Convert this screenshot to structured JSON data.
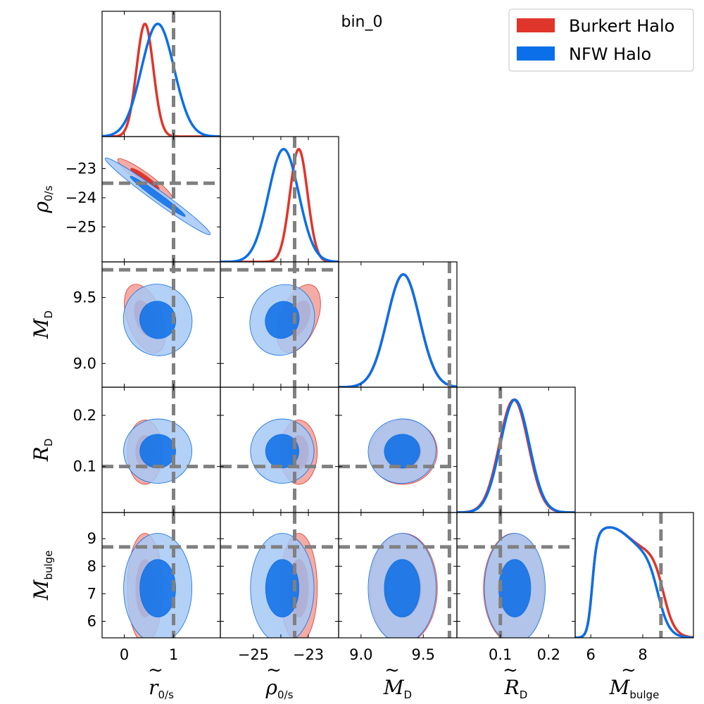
{
  "chart_data": {
    "type": "corner",
    "title": "bin_0",
    "parameters": [
      {
        "key": "r0s",
        "symbol": "r",
        "sub": "0/s",
        "range": [
          -0.45,
          1.95
        ],
        "ticks": [
          0,
          1
        ],
        "tick_labels": [
          "0",
          "1"
        ],
        "truth": 1.0
      },
      {
        "key": "rho0s",
        "symbol": "ρ",
        "sub": "0/s",
        "range": [
          -26.2,
          -21.9
        ],
        "ticks": [
          -25,
          -24,
          -23
        ],
        "tick_labels": [
          "−25",
          "−24",
          "−23"
        ],
        "x_tick_labels": [
          "−25",
          "",
          "−23"
        ],
        "truth": -23.5
      },
      {
        "key": "MD",
        "symbol": "M",
        "sub": "D",
        "range": [
          8.82,
          9.77
        ],
        "ticks": [
          9.0,
          9.5
        ],
        "tick_labels": [
          "9.0",
          "9.5"
        ],
        "truth": 9.71
      },
      {
        "key": "RD",
        "symbol": "R",
        "sub": "D",
        "range": [
          0.01,
          0.255
        ],
        "ticks": [
          0.1,
          0.2
        ],
        "tick_labels": [
          "0.1",
          "0.2"
        ],
        "truth": 0.1
      },
      {
        "key": "Mbulge",
        "symbol": "M",
        "sub": "bulge",
        "range": [
          5.4,
          9.95
        ],
        "ticks": [
          6,
          8
        ],
        "tick_labels": [
          "6",
          "8"
        ],
        "y_ticks": [
          6,
          7,
          8,
          9
        ],
        "y_tick_labels": [
          "6",
          "7",
          "8",
          "9"
        ],
        "truth": 8.7
      }
    ],
    "series": [
      {
        "name": "Burkert Halo",
        "color": "#e0352b",
        "light": "#f2a39b",
        "mean": [
          0.42,
          -23.35,
          9.34,
          0.128,
          7.2
        ],
        "std": [
          0.17,
          0.32,
          0.13,
          0.03,
          0.95
        ],
        "marginal_peaks": [
          0.42,
          -23.35,
          9.34,
          0.128,
          7.3
        ]
      },
      {
        "name": "NFW Halo",
        "color": "#0a6fe8",
        "light": "#a6c8f5",
        "mean": [
          0.68,
          -23.95,
          9.33,
          0.13,
          7.2
        ],
        "std": [
          0.33,
          0.55,
          0.13,
          0.03,
          0.95
        ],
        "marginal_peaks": [
          0.68,
          -23.9,
          9.34,
          0.13,
          7.2
        ]
      }
    ],
    "legend_position": "top-right",
    "grid": false
  }
}
